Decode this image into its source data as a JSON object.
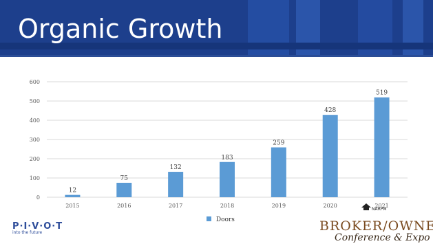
{
  "slide": {
    "title": "Organic Growth"
  },
  "chart_data": {
    "type": "bar",
    "categories": [
      "2015",
      "2016",
      "2017",
      "2018",
      "2019",
      "2020",
      "2021"
    ],
    "series": [
      {
        "name": "Doors",
        "values": [
          12,
          75,
          132,
          183,
          259,
          428,
          519
        ],
        "color": "#5b9bd5"
      }
    ],
    "yticks": [
      "0",
      "100",
      "200",
      "300",
      "400",
      "500",
      "600"
    ],
    "ylim": [
      0,
      600
    ],
    "grid": true,
    "legend": "bottom"
  },
  "legend": {
    "label": "Doors"
  },
  "logos": {
    "left": {
      "text": "P·I·V·O·T",
      "tagline": "into the future"
    },
    "right": {
      "org": "NARPM",
      "brand": "BROKER/OWNER",
      "subtitle": "Conference & Expo"
    }
  }
}
